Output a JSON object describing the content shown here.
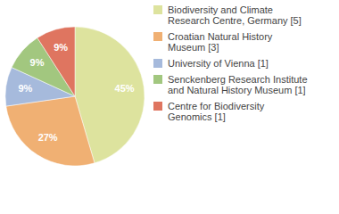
{
  "chart_data": {
    "type": "pie",
    "categories": [
      "Biodiversity and Climate Research Centre, Germany [5]",
      "Croatian Natural History Museum [3]",
      "University of Vienna [1]",
      "Senckenberg Research Institute and Natural History Museum [1]",
      "Centre for Biodiversity Genomics [1]"
    ],
    "values": [
      45,
      27,
      9,
      9,
      9
    ],
    "value_labels": [
      "45%",
      "27%",
      "9%",
      "9%",
      "9%"
    ],
    "colors": [
      "#dde39e",
      "#f0b073",
      "#a6badc",
      "#a2c77f",
      "#df7560"
    ],
    "data_labels": true,
    "legend": "right"
  }
}
